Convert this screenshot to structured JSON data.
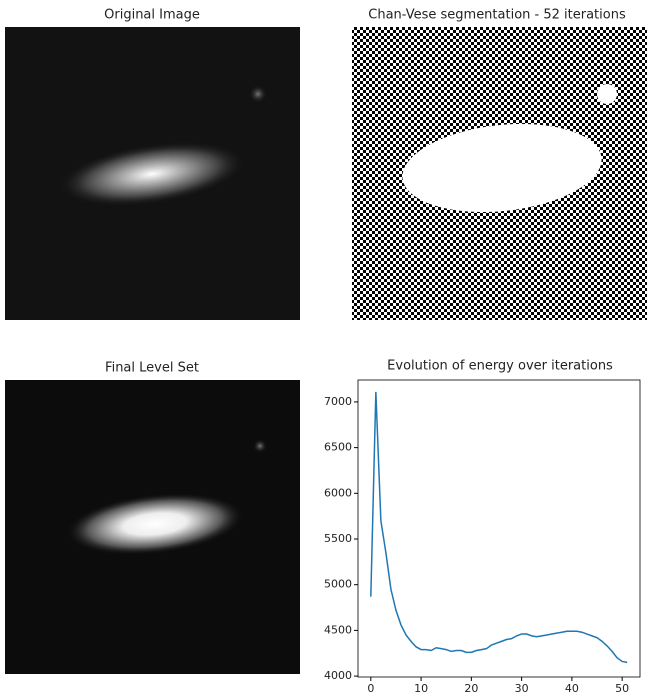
{
  "chart_data": [
    {
      "type": "image",
      "title": "Original Image"
    },
    {
      "type": "image",
      "title": "Chan-Vese segmentation - 52 iterations"
    },
    {
      "type": "image",
      "title": "Final Level Set"
    },
    {
      "type": "line",
      "title": "Evolution of energy over iterations",
      "x": [
        0,
        1,
        2,
        3,
        4,
        5,
        6,
        7,
        8,
        9,
        10,
        11,
        12,
        13,
        14,
        15,
        16,
        17,
        18,
        19,
        20,
        21,
        22,
        23,
        24,
        25,
        26,
        27,
        28,
        29,
        30,
        31,
        32,
        33,
        34,
        35,
        36,
        37,
        38,
        39,
        40,
        41,
        42,
        43,
        44,
        45,
        46,
        47,
        48,
        49,
        50,
        51
      ],
      "series": [
        {
          "color": "#1f77b4",
          "values": [
            4870,
            7110,
            5700,
            5350,
            4950,
            4720,
            4560,
            4450,
            4380,
            4320,
            4290,
            4290,
            4280,
            4310,
            4300,
            4290,
            4270,
            4280,
            4280,
            4260,
            4260,
            4280,
            4290,
            4300,
            4340,
            4360,
            4380,
            4400,
            4410,
            4440,
            4460,
            4460,
            4440,
            4430,
            4440,
            4450,
            4460,
            4470,
            4480,
            4490,
            4490,
            4490,
            4480,
            4460,
            4440,
            4420,
            4380,
            4330,
            4270,
            4200,
            4160,
            4150
          ]
        }
      ],
      "xlim": [
        -2.55,
        53.55
      ],
      "ylim": [
        3990,
        7240
      ],
      "xticks": [
        0,
        10,
        20,
        30,
        40,
        50
      ],
      "yticks": [
        4000,
        4500,
        5000,
        5500,
        6000,
        6500,
        7000
      ]
    }
  ]
}
